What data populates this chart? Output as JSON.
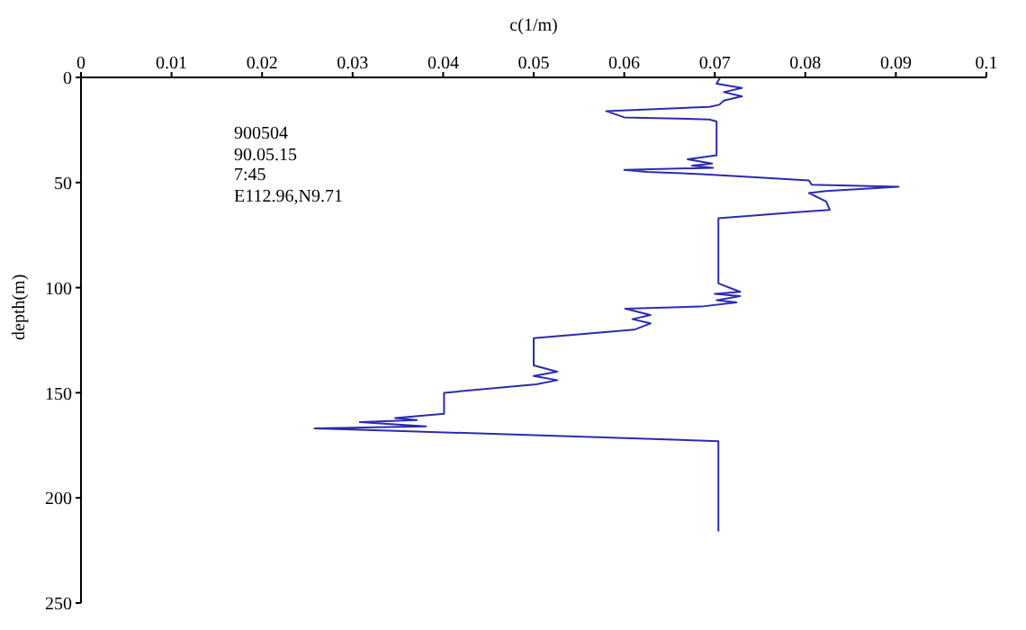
{
  "chart_data": {
    "type": "line",
    "xlabel": "c(1/m)",
    "ylabel": "depth(m)",
    "xlim": [
      0,
      0.1
    ],
    "xticks": [
      0,
      0.01,
      0.02,
      0.03,
      0.04,
      0.05,
      0.06,
      0.07,
      0.08,
      0.09,
      0.1
    ],
    "ylim": [
      250,
      0
    ],
    "yticks": [
      0,
      50,
      100,
      150,
      200,
      250
    ],
    "grid": false,
    "marker": "none",
    "line_style": "solid",
    "annotations": [
      "900504",
      "90.05.15",
      "7:45",
      "E112.96,N9.71"
    ],
    "series": [
      {
        "color": "#2b2bb0",
        "x": [
          0.0706,
          0.0702,
          0.073,
          0.071,
          0.073,
          0.071,
          0.0705,
          0.0694,
          0.058,
          0.06,
          0.0694,
          0.0702,
          0.0702,
          0.067,
          0.0697,
          0.0675,
          0.0698,
          0.06,
          0.0625,
          0.0685,
          0.0724,
          0.0804,
          0.0807,
          0.0903,
          0.0823,
          0.0804,
          0.0823,
          0.0827,
          0.0794,
          0.0704,
          0.0704,
          0.0728,
          0.07,
          0.0728,
          0.0702,
          0.0724,
          0.0685,
          0.0601,
          0.0629,
          0.0609,
          0.0629,
          0.0611,
          0.05,
          0.05,
          0.0526,
          0.05,
          0.0526,
          0.0503,
          0.0401,
          0.0401,
          0.0347,
          0.0371,
          0.0308,
          0.0381,
          0.0258,
          0.034,
          0.0704,
          0.0704
        ],
        "values": [
          0,
          3,
          5,
          7,
          9,
          11,
          13,
          14,
          16,
          19,
          20,
          21,
          37,
          39,
          41,
          42,
          43,
          44,
          45,
          46,
          47,
          49,
          51,
          52,
          54,
          55,
          59,
          63,
          64,
          67,
          98,
          102,
          103,
          104,
          106,
          107,
          109,
          110,
          113,
          115,
          117,
          120,
          124,
          137,
          140,
          142,
          144,
          146,
          150,
          160,
          162,
          163,
          164,
          166,
          167,
          168,
          173,
          216
        ]
      }
    ]
  }
}
